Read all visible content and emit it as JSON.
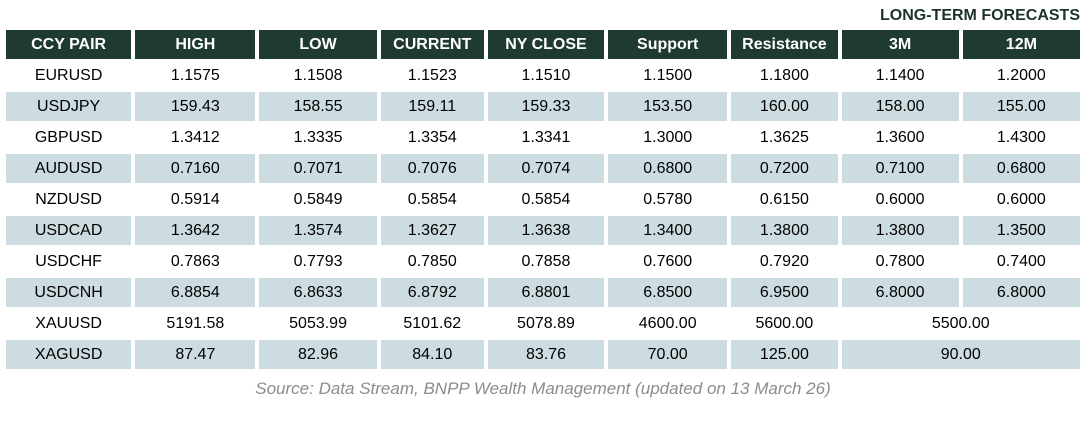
{
  "title": "LONG-TERM FORECASTS",
  "source": "Source: Data Stream, BNPP Wealth Management (updated on 13 March 26)",
  "colors": {
    "header_bg": "#1F3933",
    "stripe_bg": "#CDDCE1",
    "title_text": "#1C332C",
    "header_text": "#FFFFFF",
    "number_text": "#000000",
    "source_text": "#8C8C8C"
  },
  "table": {
    "columns": [
      "CCY PAIR",
      "HIGH",
      "LOW",
      "CURRENT",
      "NY CLOSE",
      "Support",
      "Resistance",
      "3M",
      "12M"
    ],
    "rows": [
      {
        "pair": "EURUSD",
        "values": [
          "1.1575",
          "1.1508",
          "1.1523",
          "1.1510",
          "1.1500",
          "1.1800",
          "1.1400",
          "1.2000"
        ],
        "forecast_merged": false
      },
      {
        "pair": "USDJPY",
        "values": [
          "159.43",
          "158.55",
          "159.11",
          "159.33",
          "153.50",
          "160.00",
          "158.00",
          "155.00"
        ],
        "forecast_merged": false
      },
      {
        "pair": "GBPUSD",
        "values": [
          "1.3412",
          "1.3335",
          "1.3354",
          "1.3341",
          "1.3000",
          "1.3625",
          "1.3600",
          "1.4300"
        ],
        "forecast_merged": false
      },
      {
        "pair": "AUDUSD",
        "values": [
          "0.7160",
          "0.7071",
          "0.7076",
          "0.7074",
          "0.6800",
          "0.7200",
          "0.7100",
          "0.6800"
        ],
        "forecast_merged": false
      },
      {
        "pair": "NZDUSD",
        "values": [
          "0.5914",
          "0.5849",
          "0.5854",
          "0.5854",
          "0.5780",
          "0.6150",
          "0.6000",
          "0.6000"
        ],
        "forecast_merged": false
      },
      {
        "pair": "USDCAD",
        "values": [
          "1.3642",
          "1.3574",
          "1.3627",
          "1.3638",
          "1.3400",
          "1.3800",
          "1.3800",
          "1.3500"
        ],
        "forecast_merged": false
      },
      {
        "pair": "USDCHF",
        "values": [
          "0.7863",
          "0.7793",
          "0.7850",
          "0.7858",
          "0.7600",
          "0.7920",
          "0.7800",
          "0.7400"
        ],
        "forecast_merged": false
      },
      {
        "pair": "USDCNH",
        "values": [
          "6.8854",
          "6.8633",
          "6.8792",
          "6.8801",
          "6.8500",
          "6.9500",
          "6.8000",
          "6.8000"
        ],
        "forecast_merged": false
      },
      {
        "pair": "XAUUSD",
        "values": [
          "5191.58",
          "5053.99",
          "5101.62",
          "5078.89",
          "4600.00",
          "5600.00",
          "5500.00"
        ],
        "forecast_merged": true
      },
      {
        "pair": "XAGUSD",
        "values": [
          "87.47",
          "82.96",
          "84.10",
          "83.76",
          "70.00",
          "125.00",
          "90.00"
        ],
        "forecast_merged": true
      }
    ]
  }
}
